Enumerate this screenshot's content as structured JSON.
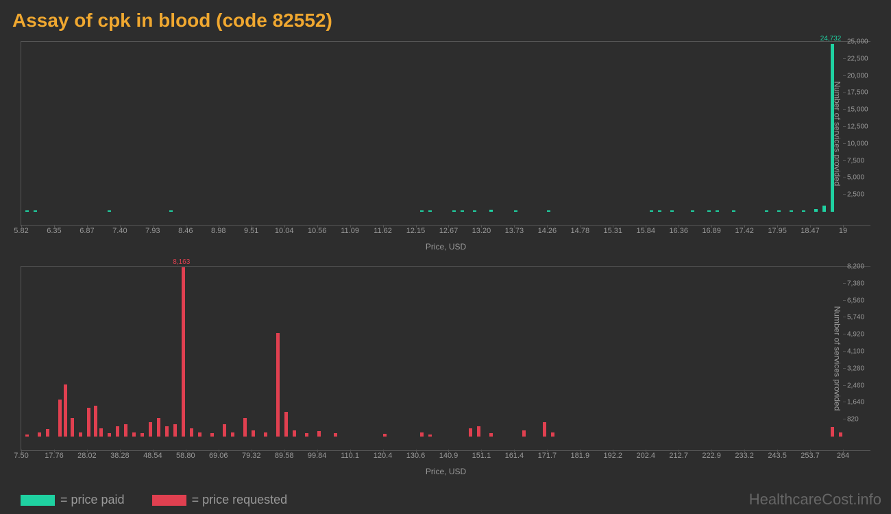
{
  "title": "Assay of cpk in blood (code 82552)",
  "colors": {
    "paid": "#1fd1a1",
    "requested": "#e04050",
    "bg": "#2d2d2d",
    "axis": "#555555",
    "text": "#999999",
    "title": "#f0a830"
  },
  "chart_paid": {
    "type": "bar",
    "peak_label": "24,732",
    "x_label": "Price, USD",
    "y_label": "Number of services provided",
    "x_ticks": [
      "5.82",
      "6.35",
      "6.87",
      "7.40",
      "7.93",
      "8.46",
      "8.98",
      "9.51",
      "10.04",
      "10.56",
      "11.09",
      "11.62",
      "12.15",
      "12.67",
      "13.20",
      "13.73",
      "14.26",
      "14.78",
      "15.31",
      "15.84",
      "16.36",
      "16.89",
      "17.42",
      "17.95",
      "18.47",
      "19"
    ],
    "y_ticks": [
      "2,500",
      "5,000",
      "7,500",
      "10,000",
      "12,500",
      "15,000",
      "17,500",
      "20,000",
      "22,500",
      "25,000"
    ],
    "y_max": 25000,
    "bars": [
      {
        "xp": 0.5,
        "v": 150
      },
      {
        "xp": 1.5,
        "v": 50
      },
      {
        "xp": 10.5,
        "v": 120
      },
      {
        "xp": 18.0,
        "v": 80
      },
      {
        "xp": 48.5,
        "v": 180
      },
      {
        "xp": 49.5,
        "v": 120
      },
      {
        "xp": 52.5,
        "v": 220
      },
      {
        "xp": 53.5,
        "v": 150
      },
      {
        "xp": 55.0,
        "v": 180
      },
      {
        "xp": 57.0,
        "v": 350
      },
      {
        "xp": 60.0,
        "v": 100
      },
      {
        "xp": 64.0,
        "v": 120
      },
      {
        "xp": 76.5,
        "v": 150
      },
      {
        "xp": 77.5,
        "v": 200
      },
      {
        "xp": 79.0,
        "v": 150
      },
      {
        "xp": 81.5,
        "v": 120
      },
      {
        "xp": 83.5,
        "v": 100
      },
      {
        "xp": 84.5,
        "v": 80
      },
      {
        "xp": 86.5,
        "v": 120
      },
      {
        "xp": 90.5,
        "v": 120
      },
      {
        "xp": 92.0,
        "v": 150
      },
      {
        "xp": 93.5,
        "v": 200
      },
      {
        "xp": 95.0,
        "v": 250
      },
      {
        "xp": 96.5,
        "v": 400
      },
      {
        "xp": 97.5,
        "v": 900
      },
      {
        "xp": 98.5,
        "v": 24732
      }
    ]
  },
  "chart_requested": {
    "type": "bar",
    "peak_label": "8,163",
    "x_label": "Price, USD",
    "y_label": "Number of services provided",
    "x_ticks": [
      "7.50",
      "17.76",
      "28.02",
      "38.28",
      "48.54",
      "58.80",
      "69.06",
      "79.32",
      "89.58",
      "99.84",
      "110.1",
      "120.4",
      "130.6",
      "140.9",
      "151.1",
      "161.4",
      "171.7",
      "181.9",
      "192.2",
      "202.4",
      "212.7",
      "222.9",
      "233.2",
      "243.5",
      "253.7",
      "264"
    ],
    "y_ticks": [
      "820",
      "1,640",
      "2,460",
      "3,280",
      "4,100",
      "4,920",
      "5,740",
      "6,560",
      "7,380",
      "8,200"
    ],
    "y_max": 8200,
    "bars": [
      {
        "xp": 0.5,
        "v": 100
      },
      {
        "xp": 2.0,
        "v": 200
      },
      {
        "xp": 3.0,
        "v": 350
      },
      {
        "xp": 4.5,
        "v": 1800
      },
      {
        "xp": 5.2,
        "v": 2500
      },
      {
        "xp": 6.0,
        "v": 900
      },
      {
        "xp": 7.0,
        "v": 200
      },
      {
        "xp": 8.0,
        "v": 1400
      },
      {
        "xp": 8.8,
        "v": 1500
      },
      {
        "xp": 9.5,
        "v": 400
      },
      {
        "xp": 10.5,
        "v": 150
      },
      {
        "xp": 11.5,
        "v": 500
      },
      {
        "xp": 12.5,
        "v": 600
      },
      {
        "xp": 13.5,
        "v": 200
      },
      {
        "xp": 14.5,
        "v": 150
      },
      {
        "xp": 15.5,
        "v": 700
      },
      {
        "xp": 16.5,
        "v": 900
      },
      {
        "xp": 17.5,
        "v": 500
      },
      {
        "xp": 18.5,
        "v": 600
      },
      {
        "xp": 19.5,
        "v": 8163
      },
      {
        "xp": 20.5,
        "v": 400
      },
      {
        "xp": 21.5,
        "v": 200
      },
      {
        "xp": 23.0,
        "v": 150
      },
      {
        "xp": 24.5,
        "v": 600
      },
      {
        "xp": 25.5,
        "v": 200
      },
      {
        "xp": 27.0,
        "v": 900
      },
      {
        "xp": 28.0,
        "v": 300
      },
      {
        "xp": 29.5,
        "v": 200
      },
      {
        "xp": 31.0,
        "v": 5000
      },
      {
        "xp": 32.0,
        "v": 1200
      },
      {
        "xp": 33.0,
        "v": 300
      },
      {
        "xp": 34.5,
        "v": 150
      },
      {
        "xp": 36.0,
        "v": 250
      },
      {
        "xp": 38.0,
        "v": 150
      },
      {
        "xp": 44.0,
        "v": 120
      },
      {
        "xp": 48.5,
        "v": 200
      },
      {
        "xp": 49.5,
        "v": 100
      },
      {
        "xp": 54.5,
        "v": 400
      },
      {
        "xp": 55.5,
        "v": 500
      },
      {
        "xp": 57.0,
        "v": 150
      },
      {
        "xp": 61.0,
        "v": 300
      },
      {
        "xp": 63.5,
        "v": 700
      },
      {
        "xp": 64.5,
        "v": 200
      },
      {
        "xp": 98.5,
        "v": 450
      },
      {
        "xp": 99.5,
        "v": 200
      }
    ]
  },
  "legend": {
    "paid": "= price paid",
    "requested": "= price requested"
  },
  "watermark": "HealthcareCost.info"
}
